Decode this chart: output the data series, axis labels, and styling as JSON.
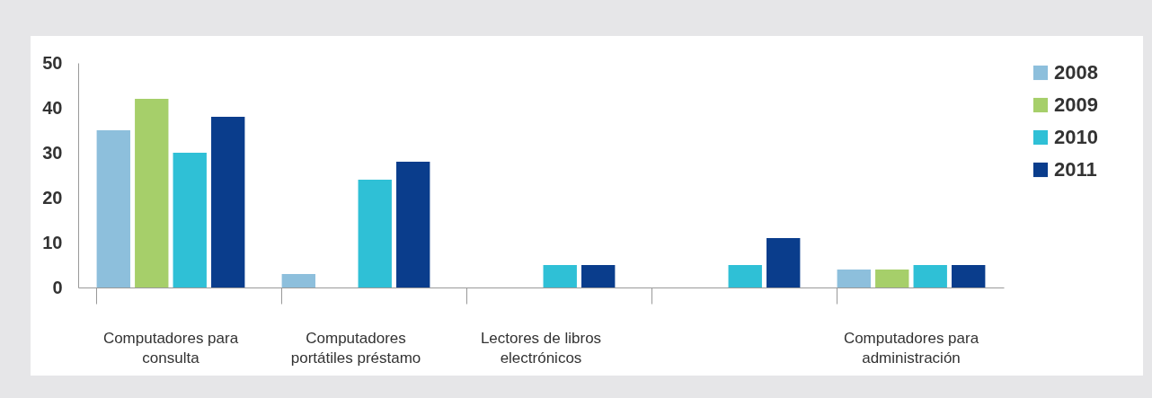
{
  "chart_data": {
    "type": "bar",
    "categories": [
      "Computadores para consulta",
      "Computadores portátiles préstamo",
      "Lectores de libros electrónicos",
      null,
      "Computadores para administración"
    ],
    "series": [
      {
        "name": "2008",
        "color": "#8dbfdc",
        "values": [
          35,
          3,
          null,
          null,
          4
        ]
      },
      {
        "name": "2009",
        "color": "#a6cf6a",
        "values": [
          42,
          null,
          null,
          null,
          4
        ]
      },
      {
        "name": "2010",
        "color": "#2fc0d6",
        "values": [
          30,
          24,
          5,
          5,
          5
        ]
      },
      {
        "name": "2011",
        "color": "#0a3d8c",
        "values": [
          38,
          28,
          5,
          11,
          5
        ]
      }
    ],
    "ylim": [
      0,
      50
    ],
    "yticks": [
      0,
      10,
      20,
      30,
      40,
      50
    ],
    "grid": false,
    "legend": "right"
  }
}
